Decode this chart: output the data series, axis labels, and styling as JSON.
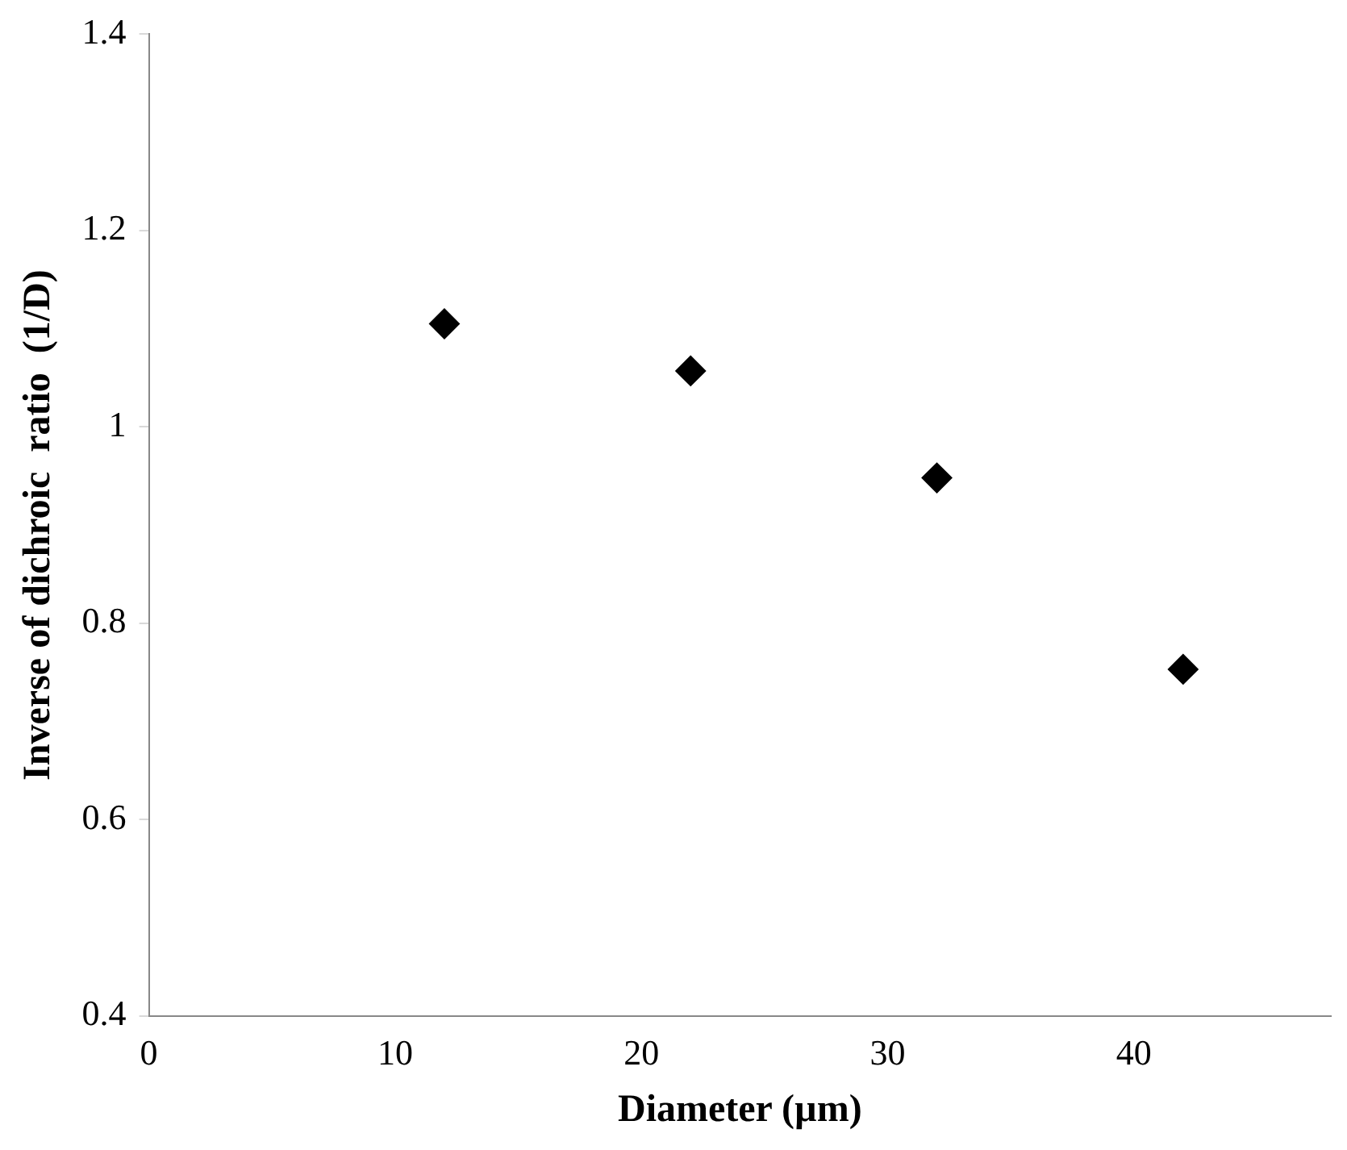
{
  "chart_data": {
    "type": "scatter",
    "xlabel": "Diameter (µm)",
    "ylabel": "Inverse of dichroic  ratio  (1/D)",
    "x": [
      12,
      22,
      32,
      42
    ],
    "values": [
      1.105,
      1.057,
      0.948,
      0.753
    ],
    "color": "#000000",
    "marker": "diamond",
    "xlim": [
      0,
      48
    ],
    "xticks": [
      0,
      10,
      20,
      30,
      40
    ],
    "ylim": [
      0.4,
      1.4
    ],
    "yticks": [
      0.4,
      0.6,
      0.8,
      1,
      1.2,
      1.4
    ],
    "grid": false,
    "legend": false
  }
}
